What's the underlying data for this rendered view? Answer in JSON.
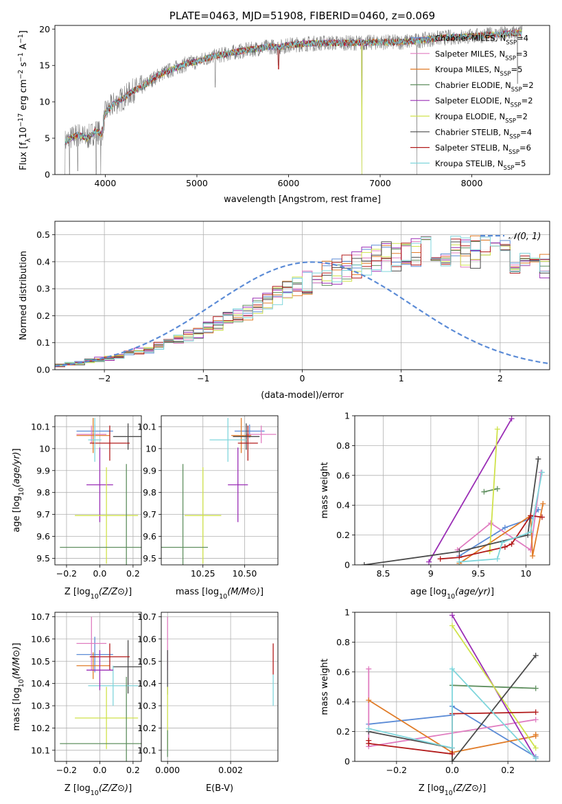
{
  "colors": {
    "chabrier_miles": "#5b8bd6",
    "salpeter_miles": "#e07cc0",
    "kroupa_miles": "#e07b27",
    "chabrier_elodie": "#5f8f5f",
    "salpeter_elodie": "#9a2db5",
    "kroupa_elodie": "#cfe24a",
    "chabrier_stelib": "#4a4a4a",
    "salpeter_stelib": "#b21a1a",
    "kroupa_stelib": "#7fd6dc",
    "gaussian": "#5b8bd6",
    "grid": "#b0b0b0"
  },
  "chart_data": [
    {
      "id": "spectrum",
      "type": "line",
      "title": "PLATE=0463, MJD=51908, FIBERID=0460, z=0.069",
      "xlabel": "wavelength [Angstrom, rest frame]",
      "ylabel": "Flux [f",
      "ylabel_parts": [
        "Flux [f",
        "λ",
        "10",
        "−17",
        " erg cm",
        "−2",
        " s",
        "−1",
        " A",
        "−1",
        "]"
      ],
      "xlim": [
        3450,
        8850
      ],
      "ylim": [
        0,
        20.5
      ],
      "xticks": [
        4000,
        5000,
        6000,
        7000,
        8000
      ],
      "yticks": [
        0,
        5,
        10,
        15,
        20
      ],
      "grid": false,
      "legend_position": "top-right",
      "legend": [
        {
          "base": "Chabrier MILES, N",
          "sub": "SSP",
          "val": "=4",
          "key": "chabrier_miles"
        },
        {
          "base": "Salpeter MILES, N",
          "sub": "SSP",
          "val": "=3",
          "key": "salpeter_miles"
        },
        {
          "base": "Kroupa MILES, N",
          "sub": "SSP",
          "val": "=5",
          "key": "kroupa_miles"
        },
        {
          "base": "Chabrier ELODIE, N",
          "sub": "SSP",
          "val": "=2",
          "key": "chabrier_elodie"
        },
        {
          "base": "Salpeter ELODIE, N",
          "sub": "SSP",
          "val": "=2",
          "key": "salpeter_elodie"
        },
        {
          "base": "Kroupa ELODIE, N",
          "sub": "SSP",
          "val": "=2",
          "key": "kroupa_elodie"
        },
        {
          "base": "Chabrier STELIB, N",
          "sub": "SSP",
          "val": "=4",
          "key": "chabrier_stelib"
        },
        {
          "base": "Salpeter STELIB, N",
          "sub": "SSP",
          "val": "=6",
          "key": "salpeter_stelib"
        },
        {
          "base": "Kroupa STELIB, N",
          "sub": "SSP",
          "val": "=5",
          "key": "kroupa_stelib"
        }
      ],
      "continuum": [
        [
          3560,
          4.5
        ],
        [
          3700,
          5.5
        ],
        [
          3800,
          5.0
        ],
        [
          3900,
          6.0
        ],
        [
          3960,
          5.5
        ],
        [
          4000,
          8.5
        ],
        [
          4100,
          9.8
        ],
        [
          4200,
          10.5
        ],
        [
          4300,
          11.5
        ],
        [
          4400,
          12.0
        ],
        [
          4500,
          13.0
        ],
        [
          4600,
          13.8
        ],
        [
          4700,
          14.3
        ],
        [
          4800,
          14.8
        ],
        [
          4900,
          15.3
        ],
        [
          5000,
          15.5
        ],
        [
          5100,
          16.0
        ],
        [
          5200,
          16.3
        ],
        [
          5300,
          16.5
        ],
        [
          5400,
          16.8
        ],
        [
          5500,
          17.0
        ],
        [
          5600,
          17.2
        ],
        [
          5700,
          17.4
        ],
        [
          5800,
          17.6
        ],
        [
          5900,
          17.5
        ],
        [
          6000,
          17.8
        ],
        [
          6200,
          18.0
        ],
        [
          6400,
          18.1
        ],
        [
          6600,
          18.1
        ],
        [
          6800,
          18.1
        ],
        [
          7000,
          18.2
        ],
        [
          7200,
          18.2
        ],
        [
          7400,
          18.4
        ],
        [
          7600,
          18.7
        ],
        [
          7800,
          18.9
        ],
        [
          8000,
          19.0
        ],
        [
          8200,
          19.2
        ],
        [
          8400,
          19.4
        ],
        [
          8550,
          19.5
        ]
      ],
      "data_noise": 1.1,
      "dips": [
        {
          "x": 3560,
          "to": 0
        },
        {
          "x": 3610,
          "to": 0
        },
        {
          "x": 3700,
          "to": 0.5
        },
        {
          "x": 3900,
          "to": 0
        },
        {
          "x": 3950,
          "to": 0
        },
        {
          "x": 5200,
          "to": 12
        },
        {
          "x": 5890,
          "to": 15
        },
        {
          "x": 6800,
          "to": 0
        },
        {
          "x": 7400,
          "to": 0
        },
        {
          "x": 8500,
          "to": 12.5
        }
      ]
    },
    {
      "id": "residuals",
      "type": "histogram",
      "xlabel": "(data-model)/error",
      "ylabel": "Normed distribution",
      "xlim": [
        -2.5,
        2.5
      ],
      "ylim": [
        0,
        0.55
      ],
      "xticks": [
        -2,
        -1,
        0,
        1,
        2
      ],
      "yticks": [
        0.0,
        0.1,
        0.2,
        0.3,
        0.4,
        0.5
      ],
      "grid": true,
      "legend_position": "top-right",
      "legend_label": "𝒩(0, 1)",
      "bin_width": 0.1,
      "bin_start": -2.5,
      "base_profile": [
        0.018,
        0.022,
        0.026,
        0.031,
        0.036,
        0.043,
        0.05,
        0.058,
        0.067,
        0.077,
        0.088,
        0.1,
        0.112,
        0.125,
        0.14,
        0.155,
        0.17,
        0.186,
        0.203,
        0.22,
        0.237,
        0.255,
        0.272,
        0.29,
        0.307,
        0.323,
        0.338,
        0.352,
        0.366,
        0.378,
        0.39,
        0.4,
        0.409,
        0.417,
        0.423,
        0.428,
        0.432,
        0.434,
        0.437,
        0.44,
        0.44,
        0.441,
        0.438,
        0.434,
        0.428,
        0.42,
        0.412,
        0.402,
        0.39,
        0.377,
        0.364,
        0.35,
        0.335,
        0.318,
        0.301,
        0.284,
        0.266,
        0.248,
        0.23,
        0.212,
        0.195,
        0.177,
        0.16,
        0.144,
        0.128,
        0.114,
        0.1,
        0.088,
        0.077,
        0.067,
        0.058,
        0.05,
        0.043,
        0.037,
        0.031,
        0.027,
        0.023,
        0.02,
        0.018,
        0.016,
        0.014,
        0.013,
        0.012,
        0.011,
        0.01,
        0.01,
        0.01,
        0.01,
        0.01,
        0.01,
        0.01,
        0.01,
        0.01,
        0.01,
        0.01,
        0.01,
        0.01,
        0.01,
        0.01,
        0.01
      ]
    },
    {
      "id": "age_vs_Z",
      "type": "errorbar",
      "xlabel": "Z [log10(Z/Z⊙)]",
      "ylabel": "age  [log10(age/yr)]",
      "xlim": [
        -0.27,
        0.25
      ],
      "ylim": [
        9.47,
        10.15
      ],
      "xticks": [
        -0.2,
        0.0,
        0.2
      ],
      "xticklabels": [
        "−0.2",
        "0.0",
        "0.2"
      ],
      "yticks": [
        9.5,
        9.6,
        9.7,
        9.8,
        9.9,
        10.0,
        10.1
      ],
      "grid": true,
      "points": [
        {
          "key": "chabrier_miles",
          "x": -0.03,
          "xerr": 0.11,
          "y": 10.08,
          "yerr": 0.03
        },
        {
          "key": "salpeter_miles",
          "x": -0.05,
          "xerr": 0.09,
          "y": 10.065,
          "yerr": 0.04
        },
        {
          "key": "kroupa_miles",
          "x": -0.04,
          "xerr": 0.1,
          "y": 10.06,
          "yerr": 0.08
        },
        {
          "key": "chabrier_stelib",
          "x": 0.17,
          "xerr": 0.09,
          "y": 10.055,
          "yerr": 0.06
        },
        {
          "key": "salpeter_stelib",
          "x": 0.06,
          "xerr": 0.12,
          "y": 10.025,
          "yerr": 0.08
        },
        {
          "key": "kroupa_stelib",
          "x": -0.03,
          "xerr": 0.04,
          "y": 10.04,
          "yerr": 0.1
        },
        {
          "key": "salpeter_elodie",
          "x": 0.0,
          "xerr": 0.08,
          "y": 9.835,
          "yerr": 0.17
        },
        {
          "key": "kroupa_elodie",
          "x": 0.04,
          "xerr": 0.19,
          "y": 9.695,
          "yerr": 0.22
        },
        {
          "key": "chabrier_elodie",
          "x": 0.16,
          "xerr": 0.4,
          "y": 9.55,
          "yerr": 0.38
        }
      ]
    },
    {
      "id": "age_vs_mass",
      "type": "errorbar",
      "xlabel": "mass [log10(M/M⊙)]",
      "ylabel": "",
      "xlim": [
        10.0,
        10.7
      ],
      "ylim": [
        9.47,
        10.15
      ],
      "xticks": [
        10.25,
        10.5
      ],
      "xticklabels": [
        "10.25",
        "10.50"
      ],
      "yticks": [
        9.5,
        9.6,
        9.7,
        9.8,
        9.9,
        10.0,
        10.1
      ],
      "grid": true,
      "points": [
        {
          "key": "chabrier_miles",
          "x": 10.53,
          "xerr": 0.09,
          "y": 10.08,
          "yerr": 0.03
        },
        {
          "key": "salpeter_miles",
          "x": 10.6,
          "xerr": 0.09,
          "y": 10.065,
          "yerr": 0.04
        },
        {
          "key": "kroupa_miles",
          "x": 10.48,
          "xerr": 0.06,
          "y": 10.06,
          "yerr": 0.08
        },
        {
          "key": "chabrier_stelib",
          "x": 10.51,
          "xerr": 0.08,
          "y": 10.055,
          "yerr": 0.06
        },
        {
          "key": "salpeter_stelib",
          "x": 10.52,
          "xerr": 0.06,
          "y": 10.025,
          "yerr": 0.08
        },
        {
          "key": "kroupa_stelib",
          "x": 10.4,
          "xerr": 0.11,
          "y": 10.04,
          "yerr": 0.1
        },
        {
          "key": "salpeter_elodie",
          "x": 10.46,
          "xerr": 0.06,
          "y": 9.835,
          "yerr": 0.17
        },
        {
          "key": "kroupa_elodie",
          "x": 10.25,
          "xerr": 0.11,
          "y": 9.695,
          "yerr": 0.22
        },
        {
          "key": "chabrier_elodie",
          "x": 10.13,
          "xerr": 0.15,
          "y": 9.55,
          "yerr": 0.38
        }
      ]
    },
    {
      "id": "weight_vs_age",
      "type": "line",
      "xlabel": "age  [log10(age/yr)]",
      "ylabel": "mass weight",
      "xlim": [
        8.2,
        10.25
      ],
      "ylim": [
        0.0,
        1.0
      ],
      "xticks": [
        8.5,
        9.0,
        9.5,
        10.0
      ],
      "yticks": [
        0.0,
        0.2,
        0.4,
        0.6,
        0.8,
        1.0
      ],
      "grid": true,
      "series": [
        {
          "key": "chabrier_miles",
          "x": [
            9.3,
            9.78,
            10.05,
            10.13
          ],
          "y": [
            0.06,
            0.25,
            0.31,
            0.37
          ]
        },
        {
          "key": "salpeter_miles",
          "x": [
            9.28,
            9.63,
            10.05,
            10.16
          ],
          "y": [
            0.1,
            0.28,
            0.1,
            0.62
          ]
        },
        {
          "key": "kroupa_miles",
          "x": [
            9.3,
            10.05,
            10.07,
            10.18
          ],
          "y": [
            0.01,
            0.33,
            0.06,
            0.41
          ]
        },
        {
          "key": "chabrier_elodie",
          "x": [
            9.56,
            9.7
          ],
          "y": [
            0.49,
            0.51
          ]
        },
        {
          "key": "salpeter_elodie",
          "x": [
            8.98,
            9.85
          ],
          "y": [
            0.02,
            0.98
          ]
        },
        {
          "key": "kroupa_elodie",
          "x": [
            9.62,
            9.7
          ],
          "y": [
            0.09,
            0.91
          ]
        },
        {
          "key": "chabrier_stelib",
          "x": [
            8.3,
            9.3,
            10.02,
            10.13
          ],
          "y": [
            0.0,
            0.09,
            0.2,
            0.71
          ]
        },
        {
          "key": "salpeter_stelib",
          "x": [
            9.1,
            9.3,
            9.78,
            9.85,
            10.05,
            10.17
          ],
          "y": [
            0.04,
            0.05,
            0.12,
            0.14,
            0.33,
            0.32
          ]
        },
        {
          "key": "kroupa_stelib",
          "x": [
            9.3,
            9.7,
            9.75,
            10.05,
            10.17
          ],
          "y": [
            0.02,
            0.04,
            0.15,
            0.22,
            0.62
          ]
        }
      ]
    },
    {
      "id": "mass_vs_Z",
      "type": "errorbar",
      "xlabel": "Z [log10(Z/Z⊙)]",
      "ylabel": "mass [log10(M/M⊙)]",
      "xlim": [
        -0.27,
        0.25
      ],
      "ylim": [
        10.05,
        10.72
      ],
      "xticks": [
        -0.2,
        0.0,
        0.2
      ],
      "xticklabels": [
        "−0.2",
        "0.0",
        "0.2"
      ],
      "yticks": [
        10.1,
        10.2,
        10.3,
        10.4,
        10.5,
        10.6,
        10.7
      ],
      "grid": true,
      "points": [
        {
          "key": "chabrier_miles",
          "x": -0.03,
          "xerr": 0.11,
          "y": 10.53,
          "yerr": 0.08
        },
        {
          "key": "salpeter_miles",
          "x": -0.05,
          "xerr": 0.09,
          "y": 10.58,
          "yerr": 0.12
        },
        {
          "key": "kroupa_miles",
          "x": -0.04,
          "xerr": 0.1,
          "y": 10.48,
          "yerr": 0.06
        },
        {
          "key": "chabrier_stelib",
          "x": 0.17,
          "xerr": 0.09,
          "y": 10.475,
          "yerr": 0.12
        },
        {
          "key": "salpeter_stelib",
          "x": 0.06,
          "xerr": 0.12,
          "y": 10.52,
          "yerr": 0.06
        },
        {
          "key": "kroupa_stelib",
          "x": 0.08,
          "xerr": 0.15,
          "y": 10.39,
          "yerr": 0.09
        },
        {
          "key": "salpeter_elodie",
          "x": 0.0,
          "xerr": 0.08,
          "y": 10.46,
          "yerr": 0.09
        },
        {
          "key": "kroupa_elodie",
          "x": 0.04,
          "xerr": 0.19,
          "y": 10.245,
          "yerr": 0.14
        },
        {
          "key": "chabrier_elodie",
          "x": 0.16,
          "xerr": 0.4,
          "y": 10.13,
          "yerr": 0.3
        }
      ]
    },
    {
      "id": "mass_vs_EBV",
      "type": "errorbar",
      "xlabel": "E(B-V)",
      "ylabel": "",
      "xlim": [
        -0.0002,
        0.0035
      ],
      "ylim": [
        10.05,
        10.72
      ],
      "xticks": [
        0.0,
        0.002
      ],
      "xticklabels": [
        "0.000",
        "0.002"
      ],
      "yticks": [
        10.1,
        10.2,
        10.3,
        10.4,
        10.5,
        10.6,
        10.7
      ],
      "grid": true,
      "points": [
        {
          "key": "salpeter_miles",
          "x": 0.0,
          "xerr": 0,
          "y": 10.58,
          "yerr": 0.12
        },
        {
          "key": "chabrier_stelib",
          "x": 0.0,
          "xerr": 0,
          "y": 10.45,
          "yerr": 0.1
        },
        {
          "key": "kroupa_elodie",
          "x": 0.0,
          "xerr": 0,
          "y": 10.245,
          "yerr": 0.14
        },
        {
          "key": "chabrier_elodie",
          "x": 0.0,
          "xerr": 0,
          "y": 10.13,
          "yerr": 0.06
        },
        {
          "key": "salpeter_stelib",
          "x": 0.00335,
          "xerr": 0,
          "y": 10.51,
          "yerr": 0.07
        },
        {
          "key": "kroupa_stelib",
          "x": 0.00335,
          "xerr": 0,
          "y": 10.37,
          "yerr": 0.07
        }
      ]
    },
    {
      "id": "weight_vs_Z",
      "type": "line",
      "xlabel": "Z [log10(Z/Z⊙)]",
      "ylabel": "mass weight",
      "xlim": [
        -0.35,
        0.35
      ],
      "ylim": [
        0.0,
        1.0
      ],
      "xticks": [
        -0.2,
        0.0,
        0.2
      ],
      "xticklabels": [
        "−0.2",
        "0.0",
        "0.2"
      ],
      "yticks": [
        0.0,
        0.2,
        0.4,
        0.6,
        0.8,
        1.0
      ],
      "grid": true,
      "series": [
        {
          "key": "chabrier_miles",
          "x": [
            -0.3,
            0.0,
            0.0,
            0.3
          ],
          "y": [
            0.25,
            0.31,
            0.37,
            0.03
          ]
        },
        {
          "key": "salpeter_miles",
          "x": [
            -0.3,
            -0.3,
            0.3
          ],
          "y": [
            0.62,
            0.1,
            0.28
          ]
        },
        {
          "key": "kroupa_miles",
          "x": [
            -0.3,
            0.0,
            0.3,
            0.3
          ],
          "y": [
            0.41,
            0.06,
            0.17,
            0.18
          ]
        },
        {
          "key": "chabrier_elodie",
          "x": [
            0.0,
            0.3
          ],
          "y": [
            0.51,
            0.49
          ]
        },
        {
          "key": "salpeter_elodie",
          "x": [
            0.0,
            0.3
          ],
          "y": [
            0.98,
            0.02
          ]
        },
        {
          "key": "kroupa_elodie",
          "x": [
            0.0,
            0.3
          ],
          "y": [
            0.91,
            0.09
          ]
        },
        {
          "key": "chabrier_stelib",
          "x": [
            -0.3,
            0.0,
            0.0,
            0.3
          ],
          "y": [
            0.2,
            0.09,
            0.0,
            0.71
          ]
        },
        {
          "key": "salpeter_stelib",
          "x": [
            -0.3,
            -0.3,
            0.0,
            0.0,
            0.3
          ],
          "y": [
            0.14,
            0.12,
            0.05,
            0.32,
            0.33
          ]
        },
        {
          "key": "kroupa_stelib",
          "x": [
            -0.3,
            0.0,
            0.0,
            0.3
          ],
          "y": [
            0.22,
            0.09,
            0.62,
            0.02
          ]
        }
      ]
    }
  ]
}
